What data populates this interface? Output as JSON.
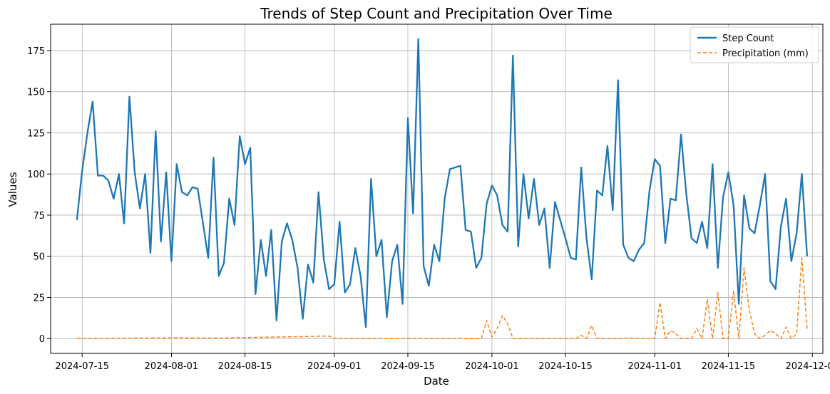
{
  "chart_data": {
    "type": "line",
    "title": "Trends of Step Count and Precipitation Over Time",
    "xlabel": "Date",
    "ylabel": "Values",
    "x_axis_type": "date",
    "xlim": [
      "2024-07-09",
      "2024-12-03"
    ],
    "ylim": [
      -9,
      191
    ],
    "x_ticks": [
      "2024-07-15",
      "2024-08-01",
      "2024-08-15",
      "2024-09-01",
      "2024-09-15",
      "2024-10-01",
      "2024-10-15",
      "2024-11-01",
      "2024-11-15",
      "2024-12-01"
    ],
    "y_ticks": [
      0,
      25,
      50,
      75,
      100,
      125,
      150,
      175
    ],
    "grid": true,
    "legend_position": "top-right",
    "series": [
      {
        "name": "Step Count",
        "color": "#1f77b4",
        "line_style": "solid",
        "x": [
          "2024-07-14",
          "2024-07-15",
          "2024-07-16",
          "2024-07-17",
          "2024-07-18",
          "2024-07-19",
          "2024-07-20",
          "2024-07-21",
          "2024-07-22",
          "2024-07-23",
          "2024-07-24",
          "2024-07-25",
          "2024-07-26",
          "2024-07-27",
          "2024-07-28",
          "2024-07-29",
          "2024-07-30",
          "2024-07-31",
          "2024-08-01",
          "2024-08-02",
          "2024-08-03",
          "2024-08-04",
          "2024-08-05",
          "2024-08-06",
          "2024-08-07",
          "2024-08-08",
          "2024-08-09",
          "2024-08-10",
          "2024-08-11",
          "2024-08-12",
          "2024-08-13",
          "2024-08-14",
          "2024-08-15",
          "2024-08-16",
          "2024-08-17",
          "2024-08-18",
          "2024-08-19",
          "2024-08-20",
          "2024-08-21",
          "2024-08-22",
          "2024-08-23",
          "2024-08-24",
          "2024-08-25",
          "2024-08-26",
          "2024-08-27",
          "2024-08-28",
          "2024-08-29",
          "2024-08-30",
          "2024-08-31",
          "2024-09-01",
          "2024-09-02",
          "2024-09-03",
          "2024-09-04",
          "2024-09-05",
          "2024-09-06",
          "2024-09-07",
          "2024-09-08",
          "2024-09-09",
          "2024-09-10",
          "2024-09-11",
          "2024-09-12",
          "2024-09-13",
          "2024-09-14",
          "2024-09-15",
          "2024-09-16",
          "2024-09-17",
          "2024-09-18",
          "2024-09-19",
          "2024-09-20",
          "2024-09-21",
          "2024-09-22",
          "2024-09-23",
          "2024-09-24",
          "2024-09-25",
          "2024-09-26",
          "2024-09-27",
          "2024-09-28",
          "2024-09-29",
          "2024-09-30",
          "2024-10-01",
          "2024-10-02",
          "2024-10-03",
          "2024-10-04",
          "2024-10-05",
          "2024-10-06",
          "2024-10-07",
          "2024-10-08",
          "2024-10-09",
          "2024-10-10",
          "2024-10-11",
          "2024-10-12",
          "2024-10-13",
          "2024-10-14",
          "2024-10-15",
          "2024-10-16",
          "2024-10-17",
          "2024-10-18",
          "2024-10-19",
          "2024-10-20",
          "2024-10-21",
          "2024-10-22",
          "2024-10-23",
          "2024-10-24",
          "2024-10-25",
          "2024-10-26",
          "2024-10-27",
          "2024-10-28",
          "2024-10-29",
          "2024-10-30",
          "2024-10-31",
          "2024-11-01",
          "2024-11-02",
          "2024-11-03",
          "2024-11-04",
          "2024-11-05",
          "2024-11-06",
          "2024-11-07",
          "2024-11-08",
          "2024-11-09",
          "2024-11-10",
          "2024-11-11",
          "2024-11-12",
          "2024-11-13",
          "2024-11-14",
          "2024-11-15",
          "2024-11-16",
          "2024-11-17",
          "2024-11-18",
          "2024-11-19",
          "2024-11-20",
          "2024-11-21",
          "2024-11-22",
          "2024-11-23",
          "2024-11-24",
          "2024-11-25",
          "2024-11-26",
          "2024-11-27",
          "2024-11-28",
          "2024-11-29",
          "2024-11-30"
        ],
        "values": [
          72,
          102,
          125,
          144,
          99,
          99,
          96,
          85,
          100,
          70,
          147,
          101,
          79,
          100,
          52,
          126,
          59,
          101,
          47,
          106,
          89,
          87,
          92,
          91,
          70,
          49,
          110,
          38,
          46,
          85,
          69,
          123,
          106,
          116,
          27,
          60,
          38,
          66,
          11,
          59,
          70,
          60,
          43,
          12,
          45,
          34,
          89,
          48,
          30,
          33,
          71,
          28,
          33,
          55,
          38,
          7,
          97,
          50,
          60,
          13,
          47,
          57,
          21,
          134,
          76,
          182,
          44,
          32,
          57,
          47,
          85,
          103,
          104,
          105,
          66,
          65,
          43,
          49,
          82,
          93,
          87,
          69,
          65,
          172,
          56,
          100,
          73,
          97,
          69,
          79,
          43,
          83,
          72,
          61,
          49,
          48,
          104,
          61,
          36,
          90,
          87,
          117,
          78,
          157,
          57,
          49,
          47,
          54,
          58,
          90,
          109,
          105,
          58,
          85,
          84,
          124,
          88,
          61,
          58,
          71,
          55,
          106,
          43,
          86,
          101,
          81,
          21,
          87,
          67,
          64,
          81,
          100,
          35,
          30,
          68,
          85,
          47,
          64,
          100,
          50
        ]
      },
      {
        "name": "Precipitation (mm)",
        "color": "#ff7f0e",
        "line_style": "dashed",
        "x": [
          "2024-07-14",
          "2024-08-01",
          "2024-08-10",
          "2024-08-31",
          "2024-09-01",
          "2024-09-29",
          "2024-09-30",
          "2024-10-01",
          "2024-10-02",
          "2024-10-03",
          "2024-10-04",
          "2024-10-05",
          "2024-10-06",
          "2024-10-07",
          "2024-10-08",
          "2024-10-09",
          "2024-10-10",
          "2024-10-11",
          "2024-10-12",
          "2024-10-13",
          "2024-10-14",
          "2024-10-15",
          "2024-10-16",
          "2024-10-17",
          "2024-10-18",
          "2024-10-19",
          "2024-10-20",
          "2024-10-21",
          "2024-10-22",
          "2024-10-23",
          "2024-10-24",
          "2024-10-25",
          "2024-10-26",
          "2024-10-27",
          "2024-10-28",
          "2024-10-29",
          "2024-10-30",
          "2024-10-31",
          "2024-11-01",
          "2024-11-02",
          "2024-11-03",
          "2024-11-04",
          "2024-11-05",
          "2024-11-06",
          "2024-11-07",
          "2024-11-08",
          "2024-11-09",
          "2024-11-10",
          "2024-11-11",
          "2024-11-12",
          "2024-11-13",
          "2024-11-14",
          "2024-11-15",
          "2024-11-16",
          "2024-11-17",
          "2024-11-18",
          "2024-11-19",
          "2024-11-20",
          "2024-11-21",
          "2024-11-22",
          "2024-11-23",
          "2024-11-24",
          "2024-11-25",
          "2024-11-26",
          "2024-11-27",
          "2024-11-28",
          "2024-11-29",
          "2024-11-30"
        ],
        "values": [
          0,
          0.5,
          0.3,
          1.5,
          0,
          0,
          11,
          1,
          6,
          14,
          9,
          0,
          0,
          0,
          0,
          0,
          0,
          0,
          0,
          0,
          0,
          0,
          0,
          0,
          2,
          0,
          8,
          0,
          0,
          0,
          0,
          0,
          0,
          0.5,
          0,
          0,
          0,
          0,
          0,
          22,
          0,
          5,
          3,
          0,
          0,
          0,
          6,
          0,
          24,
          0,
          28,
          0,
          0,
          29,
          0,
          43,
          17,
          3,
          0,
          2,
          5,
          3,
          0,
          7,
          0,
          3,
          49,
          6
        ]
      }
    ]
  }
}
